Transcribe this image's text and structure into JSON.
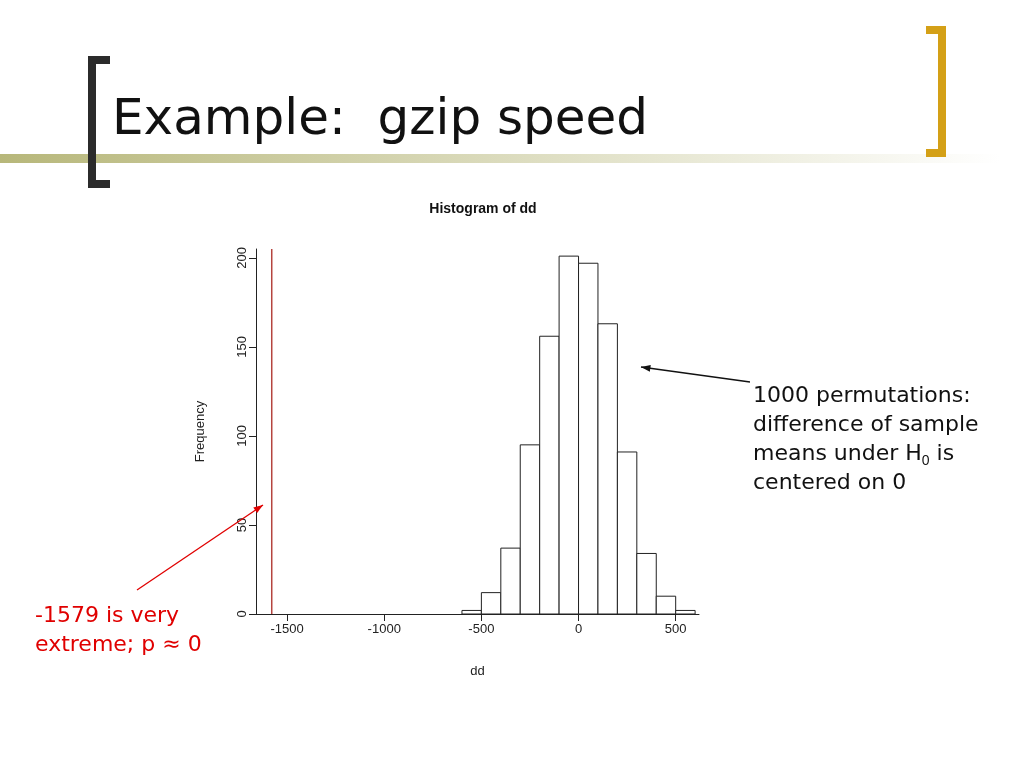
{
  "chart_data": {
    "type": "histogram",
    "title": "Example:  gzip speed",
    "subtitle": "Histogram of dd",
    "xlabel": "dd",
    "ylabel": "Frequency",
    "bins": [
      -600,
      -500,
      -400,
      -300,
      -200,
      -100,
      0,
      100,
      200,
      300,
      400,
      500,
      600
    ],
    "values": [
      2,
      12,
      37,
      95,
      156,
      201,
      197,
      163,
      91,
      34,
      10,
      2
    ],
    "color": "#ffffff",
    "xlim": [
      -1660,
      620
    ],
    "xticks": [
      -1500,
      -1000,
      -500,
      0,
      500
    ],
    "ylim": [
      0,
      205
    ],
    "yticks": [
      0,
      50,
      100,
      150,
      200
    ],
    "grid": false,
    "ref_lines": [
      {
        "axis": "x",
        "value": -1579,
        "color": "#b5443f"
      }
    ],
    "annotations": [
      "1000 permutations: difference of sample means under H$_{0}$ is centered on 0",
      "-1579 is very extreme; p ≈ 0"
    ]
  }
}
